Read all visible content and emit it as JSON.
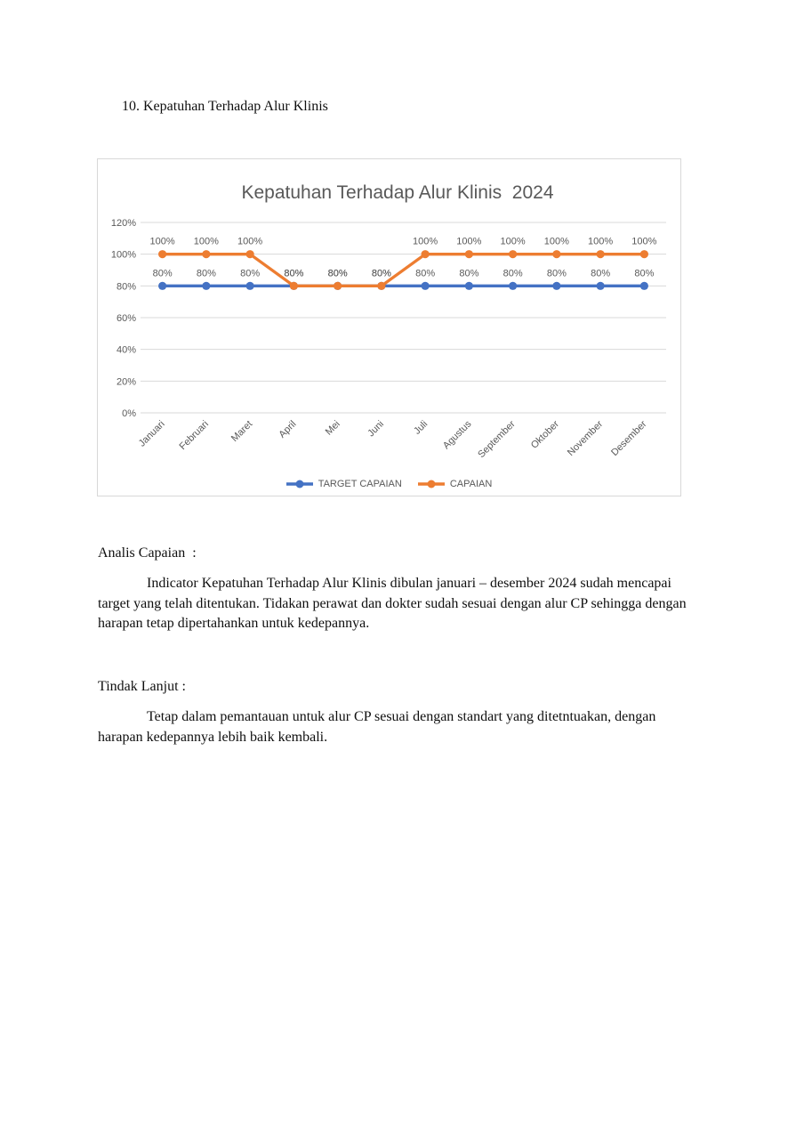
{
  "document": {
    "heading": "10. Kepatuhan Terhadap Alur Klinis",
    "analysis": {
      "label": "Analis Capaian  :",
      "body": "Indicator Kepatuhan Terhadap Alur Klinis dibulan januari – desember 2024 sudah mencapai target yang telah ditentukan. Tidakan perawat dan dokter sudah sesuai dengan alur CP sehingga dengan harapan tetap dipertahankan untuk kedepannya."
    },
    "follow_up": {
      "label": "Tindak Lanjut :",
      "body": "Tetap dalam pemantauan untuk alur CP sesuai dengan standart yang ditetntuakan, dengan harapan kedepannya lebih baik kembali."
    }
  },
  "chart_data": {
    "type": "line",
    "title": "Kepatuhan Terhadap Alur Klinis  2024",
    "title_color": "#595959",
    "categories": [
      "Januari",
      "Februari",
      "Maret",
      "April",
      "Mei",
      "Juni",
      "Juli",
      "Agustus",
      "September",
      "Oktober",
      "November",
      "Desember"
    ],
    "series": [
      {
        "name": "TARGET CAPAIAN",
        "color": "#4472C4",
        "values": [
          80,
          80,
          80,
          80,
          80,
          80,
          80,
          80,
          80,
          80,
          80,
          80
        ]
      },
      {
        "name": "CAPAIAN",
        "color": "#ED7D31",
        "values": [
          100,
          100,
          100,
          80,
          80,
          80,
          100,
          100,
          100,
          100,
          100,
          100
        ]
      }
    ],
    "data_labels": true,
    "data_label_suffix": "%",
    "y_ticks": [
      0,
      20,
      40,
      60,
      80,
      100,
      120
    ],
    "y_tick_suffix": "%",
    "ylim": [
      0,
      120
    ],
    "grid": true,
    "gridline_color": "#D9D9D9",
    "axis_text_color": "#595959",
    "marker": "circle",
    "legend_position": "bottom"
  }
}
